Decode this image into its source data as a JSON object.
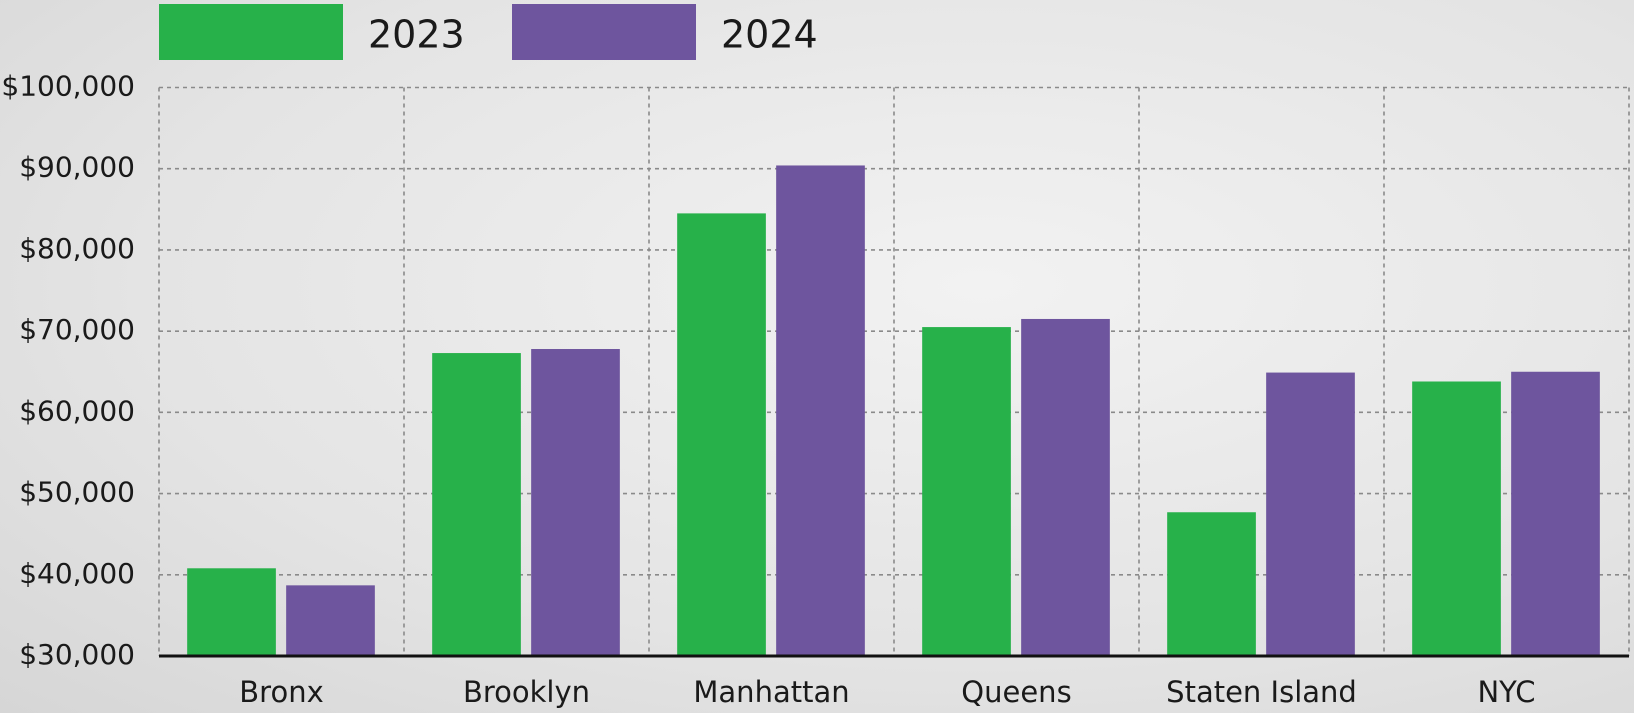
{
  "chart_data": {
    "type": "bar",
    "categories": [
      "Bronx",
      "Brooklyn",
      "Manhattan",
      "Queens",
      "Staten Island",
      "NYC"
    ],
    "series": [
      {
        "name": "2023",
        "color": "#27b14a",
        "values": [
          40800,
          67300,
          84500,
          70500,
          47700,
          63800
        ]
      },
      {
        "name": "2024",
        "color": "#6e559e",
        "values": [
          38700,
          67800,
          90400,
          71500,
          64900,
          65000
        ]
      }
    ],
    "ylim": [
      30000,
      100000
    ],
    "yticks": [
      {
        "value": 30000,
        "label": "$30,000"
      },
      {
        "value": 40000,
        "label": "$40,000"
      },
      {
        "value": 50000,
        "label": "$50,000"
      },
      {
        "value": 60000,
        "label": "$60,000"
      },
      {
        "value": 70000,
        "label": "$70,000"
      },
      {
        "value": 80000,
        "label": "$80,000"
      },
      {
        "value": 90000,
        "label": "$90,000"
      },
      {
        "value": 100000,
        "label": "$100,000"
      }
    ],
    "grid": true
  }
}
